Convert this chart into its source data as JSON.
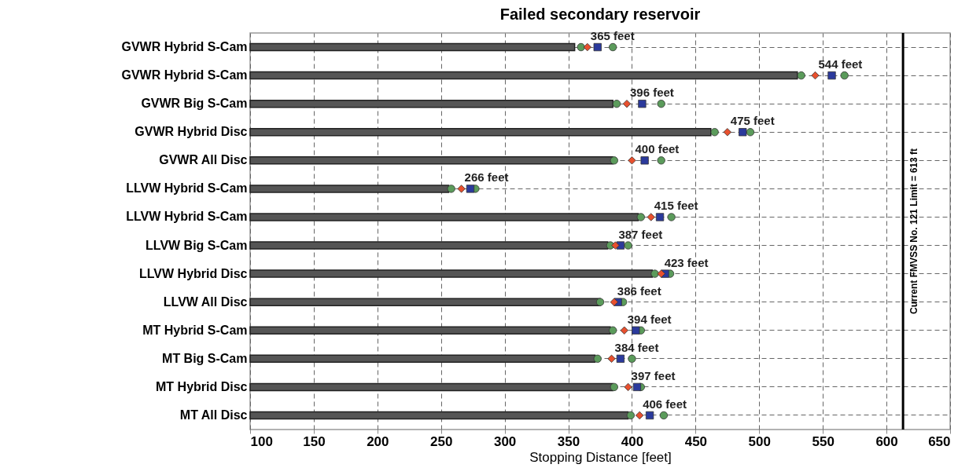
{
  "chart_data": {
    "type": "bar",
    "orientation": "horizontal",
    "title": "Failed secondary reservoir",
    "xlabel": "Stopping Distance [feet]",
    "categories": [
      "GVWR Hybrid S-Cam",
      "GVWR Hybrid S-Cam",
      "GVWR Big S-Cam",
      "GVWR Hybrid Disc",
      "GVWR All Disc",
      "LLVW Hybrid S-Cam",
      "LLVW Hybrid S-Cam",
      "LLVW Big S-Cam",
      "LLVW Hybrid Disc",
      "LLVW All Disc",
      "MT Hybrid S-Cam",
      "MT Big S-Cam",
      "MT Hybrid Disc",
      "MT All Disc"
    ],
    "series": [
      {
        "type": "bar",
        "color": "#555555",
        "values": [
          355,
          530,
          385,
          462,
          385,
          256,
          405,
          381,
          416,
          375,
          383,
          371,
          385,
          397
        ]
      },
      {
        "type": "scatter",
        "marker": "circle",
        "color": "#5b9b5b",
        "values": [
          360,
          533,
          388,
          465,
          386,
          258,
          407,
          383,
          418,
          375,
          385,
          373,
          386,
          399
        ]
      },
      {
        "type": "scatter",
        "marker": "circle",
        "color": "#5b9b5b",
        "values": [
          385,
          567,
          423,
          493,
          423,
          277,
          431,
          397,
          430,
          393,
          407,
          400,
          407,
          425
        ]
      },
      {
        "type": "scatter",
        "marker": "square",
        "color": "#2b3a9c",
        "values": [
          373,
          557,
          408,
          487,
          410,
          273,
          422,
          391,
          426,
          389,
          403,
          391,
          404,
          414
        ]
      },
      {
        "type": "scatter",
        "marker": "diamond",
        "color": "#e8502e",
        "values": [
          365,
          544,
          396,
          475,
          400,
          266,
          415,
          387,
          423,
          386,
          394,
          384,
          397,
          406
        ],
        "value_labels": [
          "365 feet",
          "544 feet",
          "396 feet",
          "475 feet",
          "400 feet",
          "266 feet",
          "415 feet",
          "387 feet",
          "423 feet",
          "386 feet",
          "394 feet",
          "384 feet",
          "397 feet",
          "406 feet"
        ]
      }
    ],
    "xlim": [
      100,
      650
    ],
    "xticks": [
      100,
      150,
      200,
      250,
      300,
      350,
      400,
      450,
      500,
      550,
      600,
      650
    ],
    "grid": true,
    "ref_lines": [
      {
        "axis": "x",
        "value": 613,
        "label": "Current FMVSS No. 121 Limit = 613 ft",
        "color": "#000000"
      }
    ]
  }
}
